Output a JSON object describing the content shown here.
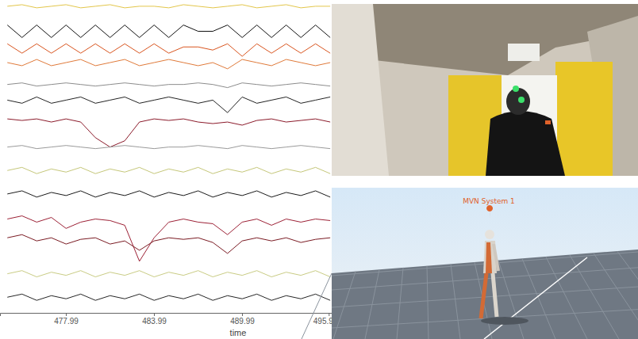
{
  "chart_data": {
    "type": "line",
    "x_label": "time",
    "x": [
      474,
      475,
      476,
      477,
      478,
      479,
      480,
      481,
      482,
      483,
      484,
      485,
      486,
      487,
      488,
      489,
      490,
      491,
      492,
      493,
      494,
      495,
      496
    ],
    "xlim": [
      473.5,
      496.1
    ],
    "xticks": [
      477.99,
      483.99,
      489.99,
      495.9
    ],
    "ylim": [
      0,
      100
    ],
    "tick_labels": "x",
    "grid": false,
    "series": [
      {
        "color": "#e3c64a",
        "values": [
          98,
          98.5,
          97.5,
          98,
          98.5,
          97.5,
          98,
          98.5,
          97.5,
          98,
          98,
          97.5,
          98.5,
          98,
          97.5,
          98,
          98.5,
          97.5,
          98,
          98.5,
          97.5,
          98,
          98
        ]
      },
      {
        "color": "#111111",
        "values": [
          92,
          88,
          92,
          88,
          92,
          88,
          92,
          88,
          92,
          88,
          92,
          88,
          92,
          90,
          90,
          92,
          88,
          92,
          88,
          92,
          88,
          92,
          88
        ]
      },
      {
        "color": "#d9541e",
        "values": [
          86,
          83,
          86,
          83,
          86,
          83,
          86,
          83,
          86,
          83,
          86,
          83,
          85,
          85,
          84,
          86,
          82,
          86,
          83,
          86,
          83,
          86,
          83
        ]
      },
      {
        "color": "#e07a3a",
        "values": [
          80,
          79,
          81,
          79,
          80,
          81,
          79,
          80,
          81,
          79,
          80,
          81,
          80,
          79,
          80,
          78,
          81,
          80,
          79,
          81,
          80,
          79,
          80
        ]
      },
      {
        "color": "#8c8c8c",
        "values": [
          73,
          73.5,
          72.5,
          73,
          73.5,
          73,
          72.5,
          73,
          73.5,
          73,
          72.5,
          73,
          73,
          73.5,
          73,
          72,
          73.5,
          73,
          72.5,
          73,
          73.5,
          73,
          72.5
        ]
      },
      {
        "color": "#222222",
        "values": [
          68,
          67,
          69,
          67,
          68,
          69,
          67,
          68,
          69,
          67,
          68,
          69,
          68,
          67,
          68,
          64,
          69,
          67,
          68,
          69,
          67,
          68,
          69
        ]
      },
      {
        "color": "#8b1a2a",
        "values": [
          62,
          61.5,
          62,
          61,
          62,
          61,
          56,
          53,
          55,
          61,
          62,
          61.5,
          62,
          61,
          60.5,
          61,
          60,
          61.5,
          62,
          61,
          61.5,
          62,
          61
        ]
      },
      {
        "color": "#9a9a9a",
        "values": [
          53,
          53.5,
          52.5,
          53,
          53.5,
          53,
          52.5,
          53,
          53.5,
          53,
          52.5,
          53,
          53,
          53.5,
          53,
          52.5,
          53.5,
          53,
          52.5,
          53,
          53.5,
          53,
          52.5
        ]
      },
      {
        "color": "#c5c77a",
        "values": [
          45.5,
          46.5,
          44.5,
          46,
          45,
          46.5,
          44.5,
          46,
          45,
          46.5,
          44.5,
          46,
          45,
          46.5,
          44.5,
          46,
          45,
          46.5,
          44.5,
          46,
          45,
          46.5,
          44.5
        ]
      },
      {
        "color": "#1a1a1a",
        "values": [
          38,
          39,
          37,
          38.5,
          37.5,
          39,
          37,
          38.5,
          37.5,
          39,
          37,
          38.5,
          37.5,
          39,
          37,
          38.5,
          37.5,
          39,
          37,
          38.5,
          37.5,
          39,
          37
        ]
      },
      {
        "color": "#9c2035",
        "values": [
          30,
          31,
          29,
          30.5,
          27,
          29,
          30,
          29.5,
          28,
          16.5,
          24,
          29,
          30,
          29,
          28.5,
          25,
          29,
          30,
          28,
          30,
          29,
          30,
          29.5
        ]
      },
      {
        "color": "#7a1a22",
        "values": [
          24,
          25,
          23,
          24,
          22,
          23.5,
          24,
          22,
          23,
          20,
          23,
          24,
          23.5,
          24,
          22.5,
          19,
          23,
          24,
          23,
          24,
          22.5,
          23.5,
          24
        ]
      },
      {
        "color": "#c9cc84",
        "values": [
          12.5,
          13.5,
          11.5,
          13,
          12,
          13.5,
          11.5,
          13,
          12,
          13.5,
          11.5,
          13,
          12,
          13.5,
          11.5,
          13,
          12,
          13.5,
          11.5,
          13,
          12,
          13.5,
          11.5
        ]
      },
      {
        "color": "#262626",
        "values": [
          5,
          6,
          4,
          5.5,
          4.5,
          6,
          4,
          5.5,
          4.5,
          6,
          4,
          5.5,
          4.5,
          6,
          4,
          5.5,
          4.5,
          6,
          4,
          5.5,
          4.5,
          6,
          4
        ]
      }
    ]
  },
  "avatar_view": {
    "label": "MVN System 1"
  }
}
